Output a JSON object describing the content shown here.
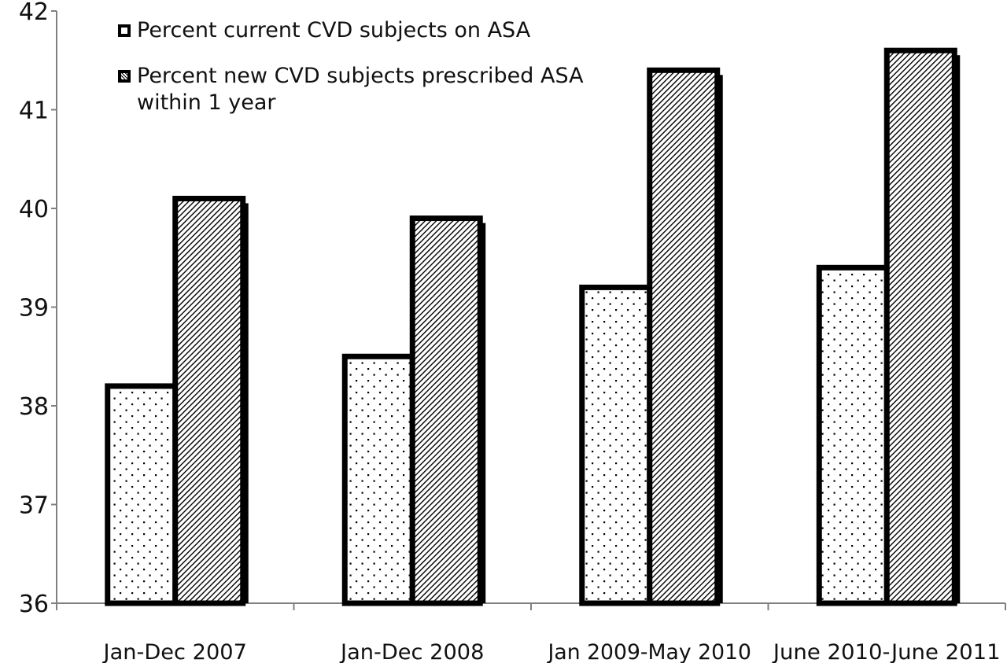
{
  "chart_data": {
    "type": "bar",
    "title": "",
    "xlabel": "",
    "ylabel": "",
    "categories": [
      "Jan-Dec 2007",
      "Jan-Dec 2008",
      "Jan 2009-May 2010",
      "June 2010-June 2011"
    ],
    "series": [
      {
        "name": "Percent current CVD subjects on ASA",
        "values": [
          38.2,
          38.5,
          39.2,
          39.4
        ],
        "pattern": "dots"
      },
      {
        "name": "Percent new CVD subjects prescribed ASA within 1 year",
        "values": [
          40.1,
          39.9,
          41.4,
          41.6
        ],
        "pattern": "diagonal-hatch"
      }
    ],
    "ylim": [
      36,
      42
    ],
    "yticks": [
      "36",
      "37",
      "38",
      "39",
      "40",
      "41",
      "42"
    ],
    "grid": false,
    "legend_position": "top-left",
    "colors": {
      "bar_fill": "#ffffff",
      "bar_outline": "#000000",
      "pattern": "#000000",
      "axis": "#808080",
      "text": "#111111"
    }
  }
}
